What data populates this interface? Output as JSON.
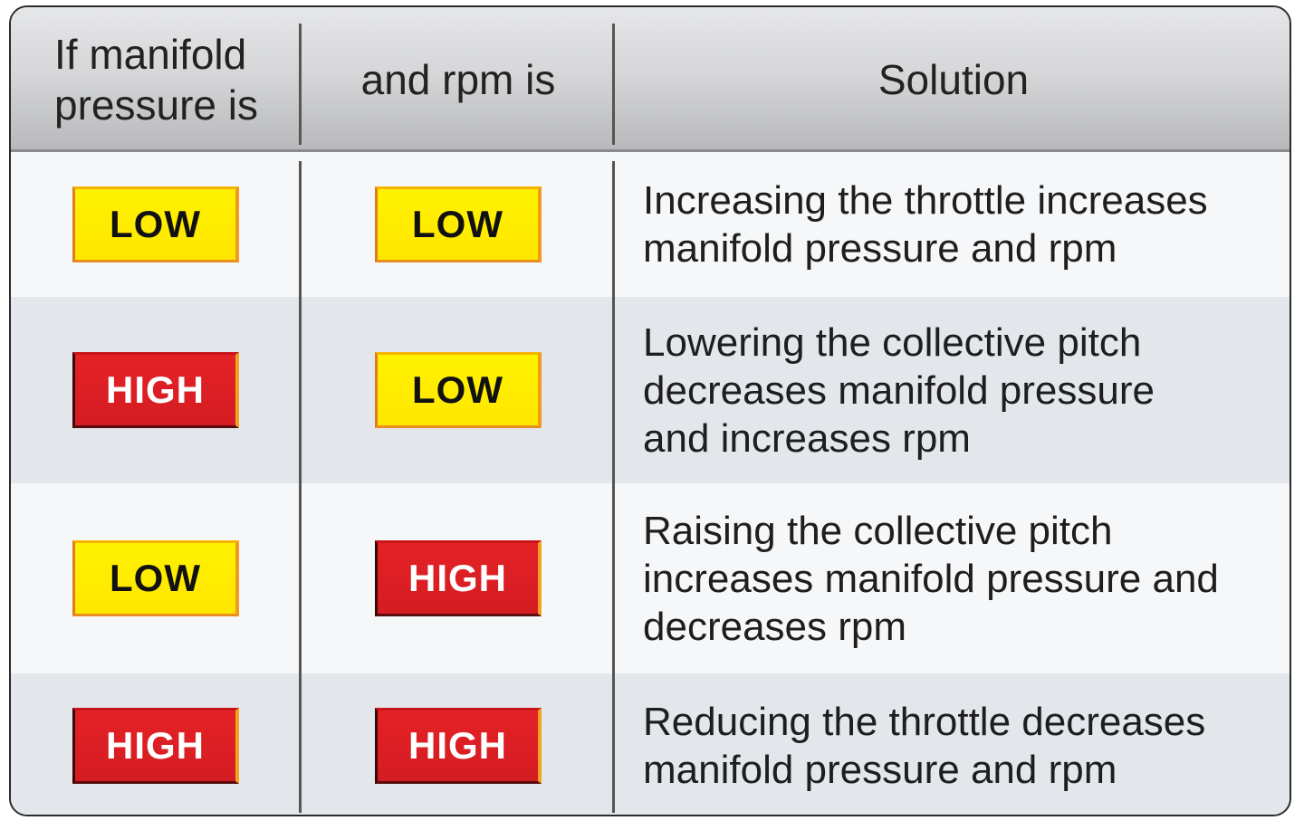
{
  "header": {
    "col1": [
      "If manifold",
      "pressure is"
    ],
    "col2": "and rpm is",
    "col3": "Solution"
  },
  "rows": [
    {
      "manifold": "LOW",
      "rpm": "LOW",
      "solution": [
        "Increasing the throttle increases",
        "manifold pressure and rpm"
      ]
    },
    {
      "manifold": "HIGH",
      "rpm": "LOW",
      "solution": [
        "Lowering the collective pitch",
        "decreases manifold pressure",
        "and increases rpm"
      ]
    },
    {
      "manifold": "LOW",
      "rpm": "HIGH",
      "solution": [
        "Raising the collective pitch",
        "increases manifold pressure and",
        "decreases rpm"
      ]
    },
    {
      "manifold": "HIGH",
      "rpm": "HIGH",
      "solution": [
        "Reducing the throttle decreases",
        "manifold pressure and rpm"
      ]
    }
  ],
  "colors": {
    "low_badge": "#ffe600",
    "high_badge": "#d41c22",
    "header_bg": "#d0d1d3",
    "row_dark": "#e3e6ea",
    "row_light": "#f6f7f9"
  }
}
